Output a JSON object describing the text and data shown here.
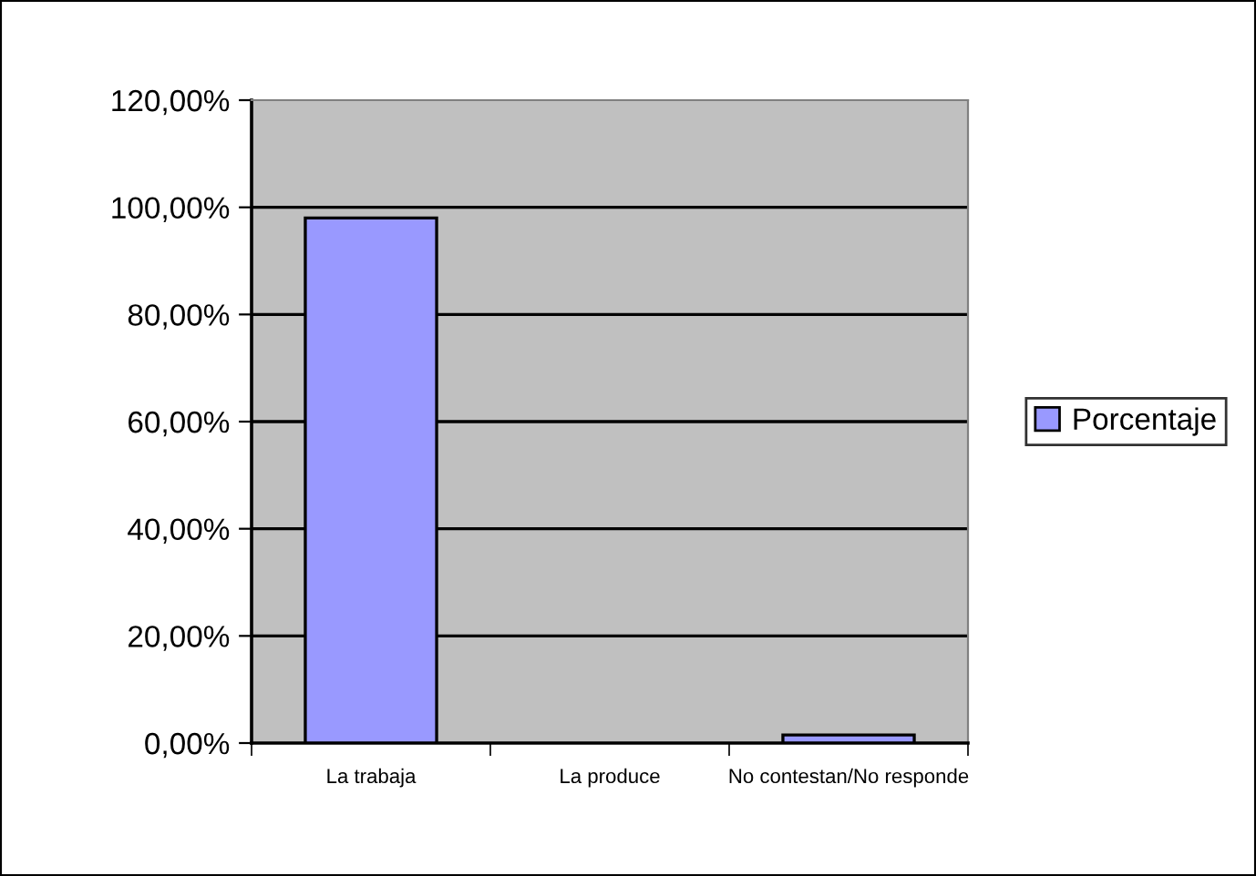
{
  "chart_data": {
    "type": "bar",
    "categories": [
      "La trabaja",
      "La produce",
      "No contestan/No responde"
    ],
    "series": [
      {
        "name": "Porcentaje",
        "color": "#9999ff",
        "values": [
          98,
          0,
          1.5
        ]
      }
    ],
    "ylim": [
      0,
      120
    ],
    "yticks": [
      {
        "value": 0,
        "label": "0,00%"
      },
      {
        "value": 20,
        "label": "20,00%"
      },
      {
        "value": 40,
        "label": "40,00%"
      },
      {
        "value": 60,
        "label": "60,00%"
      },
      {
        "value": 80,
        "label": "80,00%"
      },
      {
        "value": 100,
        "label": "100,00%"
      },
      {
        "value": 120,
        "label": "120,00%"
      }
    ],
    "grid": "y",
    "legend": "right"
  }
}
